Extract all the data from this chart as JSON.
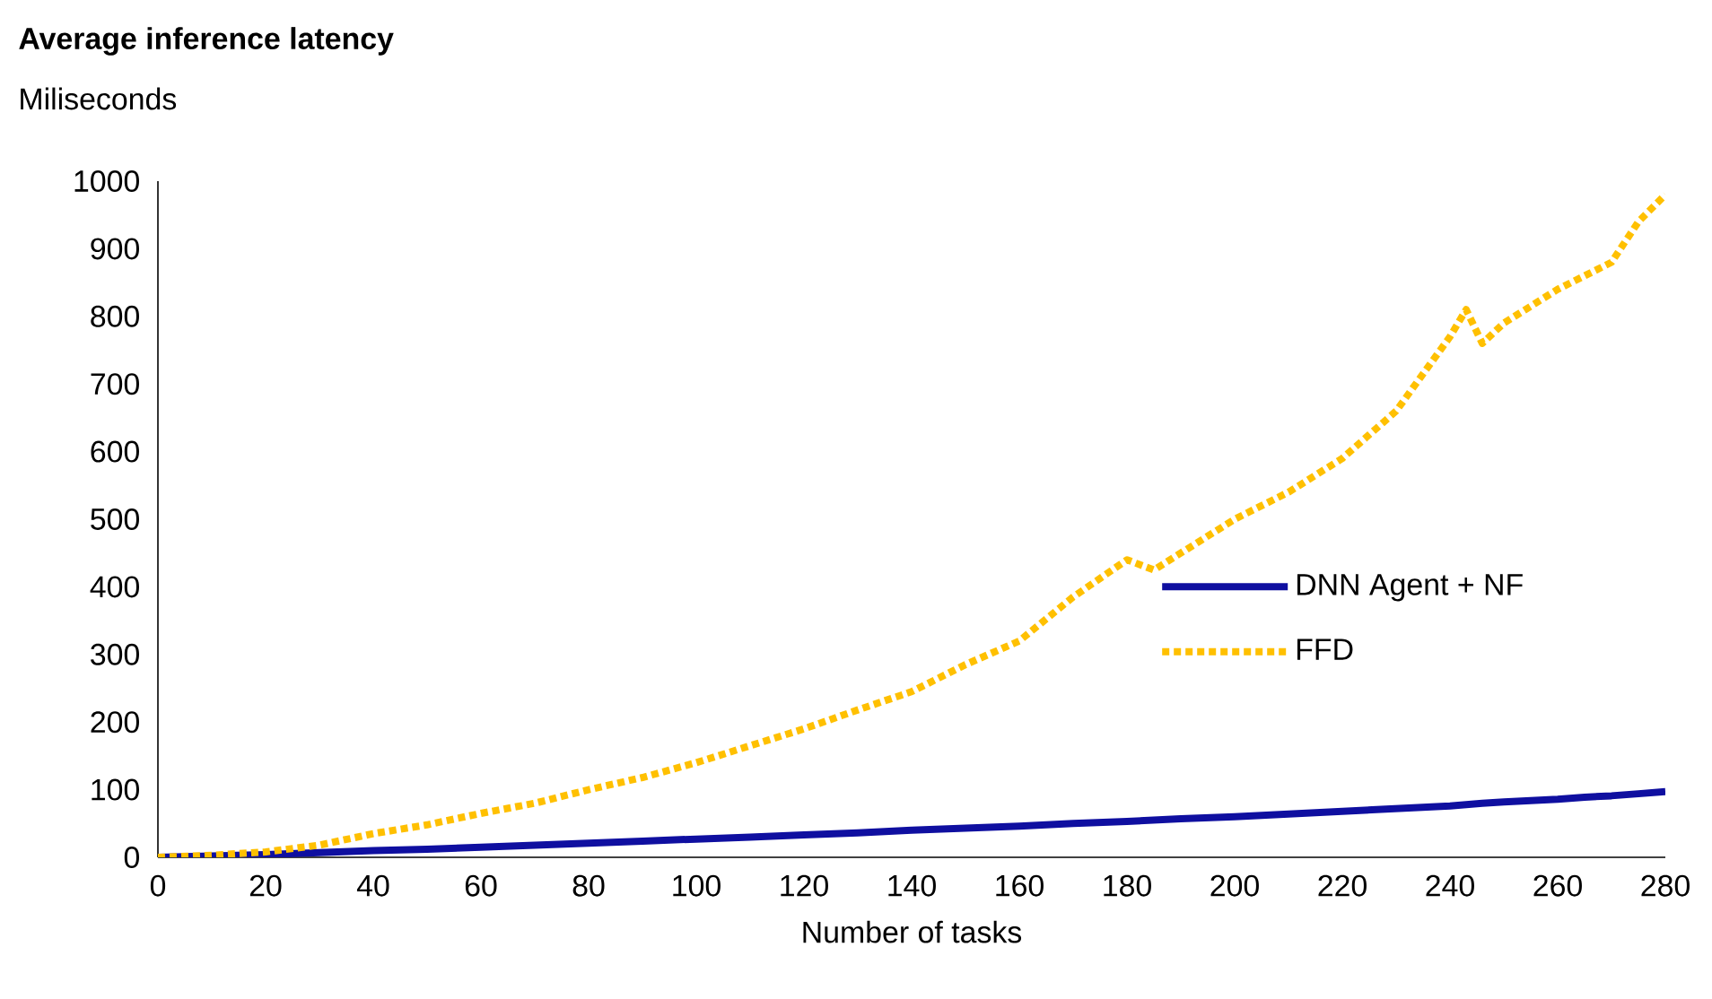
{
  "chart_data": {
    "type": "line",
    "title": "Average inference latency",
    "subtitle": "Miliseconds",
    "xlabel": "Number of tasks",
    "x": [
      0,
      10,
      20,
      30,
      40,
      50,
      60,
      70,
      80,
      90,
      100,
      110,
      120,
      130,
      140,
      150,
      160,
      170,
      180,
      185,
      190,
      200,
      210,
      220,
      230,
      240,
      243,
      246,
      250,
      260,
      265,
      270,
      275,
      280
    ],
    "series": [
      {
        "name": "DNN Agent + NF",
        "color": "#0f0fa0",
        "line_style": "solid",
        "values": [
          0,
          2,
          4,
          7,
          10,
          12,
          15,
          18,
          21,
          24,
          27,
          30,
          33,
          36,
          40,
          43,
          46,
          50,
          53,
          55,
          57,
          60,
          64,
          68,
          72,
          76,
          78,
          80,
          82,
          86,
          89,
          91,
          94,
          97
        ]
      },
      {
        "name": "FFD",
        "color": "#ffc000",
        "line_style": "dotted",
        "values": [
          0,
          3,
          8,
          18,
          35,
          48,
          65,
          80,
          100,
          118,
          140,
          165,
          190,
          218,
          245,
          285,
          320,
          385,
          440,
          425,
          450,
          500,
          540,
          590,
          660,
          770,
          810,
          760,
          790,
          840,
          860,
          880,
          940,
          980
        ]
      }
    ],
    "xlim": [
      0,
      280
    ],
    "ylim": [
      0,
      1000
    ],
    "xticks": [
      0,
      20,
      40,
      60,
      80,
      100,
      120,
      140,
      160,
      180,
      200,
      220,
      240,
      260,
      280
    ],
    "yticks": [
      0,
      100,
      200,
      300,
      400,
      500,
      600,
      700,
      800,
      900,
      1000
    ],
    "marker": "none",
    "legend": "right",
    "grid": false
  }
}
